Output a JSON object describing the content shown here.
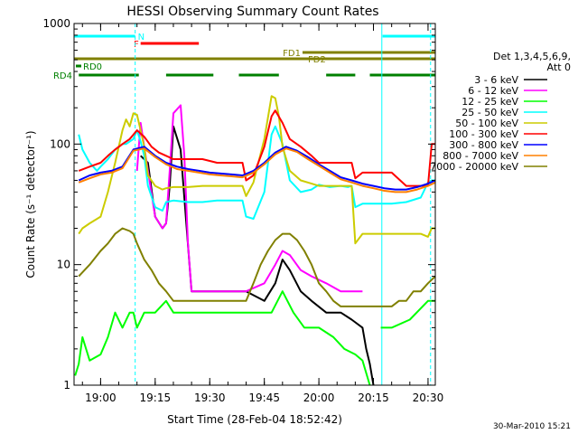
{
  "chart_data": {
    "type": "line",
    "title": "HESSI Observing Summary Count Rates",
    "xlabel": "Start Time (28-Feb-04 18:52:42)",
    "ylabel": "Count Rate (s⁻¹ detector⁻¹)",
    "y_scale": "log",
    "ylim": [
      1,
      1000
    ],
    "xlim_minutes": [
      -7.3,
      92
    ],
    "x_ticks": [
      {
        "label": "19:00",
        "min": 0
      },
      {
        "label": "19:15",
        "min": 15
      },
      {
        "label": "19:30",
        "min": 30
      },
      {
        "label": "19:45",
        "min": 45
      },
      {
        "label": "20:00",
        "min": 60
      },
      {
        "label": "20:15",
        "min": 75
      },
      {
        "label": "20:30",
        "min": 90
      }
    ],
    "y_ticks": [
      {
        "label": "1",
        "value": 1
      },
      {
        "label": "10",
        "value": 10
      },
      {
        "label": "100",
        "value": 100
      },
      {
        "label": "1000",
        "value": 1000
      }
    ],
    "legend_header": [
      "Det 1,3,4,5,6,9,",
      "Att 0"
    ],
    "footer_date": "30-Mar-2010 15:21",
    "series": [
      {
        "name": "3 - 6 keV",
        "color": "#000000",
        "x": [
          -7,
          -2,
          3,
          6,
          8,
          10,
          11,
          13,
          15,
          17,
          18,
          19,
          20,
          22,
          25,
          30,
          35,
          40,
          45,
          48,
          50,
          52,
          55,
          58,
          62,
          66,
          69,
          72,
          73,
          74,
          75,
          77,
          80,
          85,
          90,
          92
        ],
        "y": [
          null,
          null,
          null,
          null,
          null,
          null,
          80,
          70,
          25,
          20,
          22,
          45,
          140,
          90,
          6,
          6,
          6,
          6,
          5,
          7,
          11,
          9,
          6,
          5,
          4,
          4,
          3.5,
          3,
          2,
          1.5,
          1,
          null,
          null,
          null,
          null,
          null
        ]
      },
      {
        "name": "6 - 12 keV",
        "color": "#ff00ff",
        "x": [
          -7,
          -2,
          3,
          6,
          8,
          9,
          10,
          11,
          13,
          15,
          17,
          18,
          19,
          20,
          22,
          23,
          24,
          25,
          28,
          32,
          36,
          40,
          45,
          48,
          50,
          52,
          55,
          58,
          62,
          66,
          69,
          72,
          75,
          77,
          80,
          85,
          90,
          92
        ],
        "y": [
          null,
          null,
          null,
          null,
          null,
          null,
          60,
          150,
          60,
          25,
          20,
          22,
          60,
          180,
          210,
          80,
          15,
          6,
          6,
          6,
          6,
          6,
          7,
          10,
          13,
          12,
          9,
          8,
          7,
          6,
          6,
          6,
          null,
          null,
          null,
          null,
          null,
          null
        ]
      },
      {
        "name": "12 - 25 keV",
        "color": "#00ff00",
        "x": [
          -7,
          -6,
          -5,
          -3,
          0,
          2,
          4,
          6,
          8,
          9,
          10,
          12,
          15,
          18,
          20,
          24,
          28,
          32,
          36,
          40,
          44,
          47,
          50,
          53,
          56,
          60,
          64,
          67,
          70,
          72,
          74,
          75,
          77,
          80,
          85,
          90,
          92
        ],
        "y": [
          1.2,
          1.5,
          2.5,
          1.6,
          1.8,
          2.5,
          4,
          3,
          4,
          4,
          3,
          4,
          4,
          5,
          4,
          4,
          4,
          4,
          4,
          4,
          4,
          4,
          6,
          4,
          3,
          3,
          2.5,
          2,
          1.8,
          1.6,
          1,
          null,
          3,
          3,
          3.5,
          5,
          5
        ]
      },
      {
        "name": "25 - 50 keV",
        "color": "#00ffff",
        "x": [
          -7,
          -6,
          -5,
          -3,
          -1,
          0,
          2,
          4,
          6,
          7,
          8,
          9,
          10,
          11,
          12,
          13,
          15,
          17,
          18,
          20,
          24,
          28,
          32,
          36,
          39,
          40,
          42,
          45,
          47,
          48,
          50,
          52,
          55,
          58,
          60,
          63,
          66,
          68,
          69,
          70,
          72,
          75,
          77,
          80,
          84,
          88,
          90,
          91,
          92
        ],
        "y": [
          null,
          120,
          90,
          70,
          60,
          65,
          75,
          90,
          100,
          100,
          105,
          110,
          130,
          105,
          80,
          45,
          30,
          28,
          33,
          34,
          33,
          33,
          34,
          34,
          34,
          25,
          24,
          40,
          120,
          140,
          100,
          50,
          40,
          42,
          46,
          44,
          45,
          44,
          45,
          30,
          32,
          32,
          32,
          32,
          33,
          36,
          48,
          50,
          50
        ]
      },
      {
        "name": "50 - 100 keV",
        "color": "#cccc00",
        "x": [
          -7,
          -6,
          -5,
          -3,
          0,
          2,
          4,
          6,
          7,
          8,
          9,
          10,
          11,
          12,
          13,
          15,
          17,
          18,
          20,
          24,
          28,
          32,
          36,
          39,
          40,
          42,
          45,
          47,
          48,
          49,
          50,
          52,
          55,
          58,
          60,
          63,
          66,
          68,
          69,
          70,
          72,
          75,
          77,
          80,
          84,
          88,
          90,
          91,
          92
        ],
        "y": [
          null,
          18,
          20,
          22,
          25,
          40,
          70,
          130,
          160,
          140,
          180,
          175,
          130,
          95,
          55,
          45,
          42,
          43,
          44,
          44,
          45,
          45,
          45,
          45,
          37,
          48,
          110,
          250,
          240,
          170,
          95,
          60,
          50,
          47,
          45,
          45,
          45,
          45,
          45,
          15,
          18,
          18,
          18,
          18,
          18,
          18,
          17,
          20,
          20
        ]
      },
      {
        "name": "100 - 300 keV",
        "color": "#ff0000",
        "x": [
          -7,
          -6,
          -3,
          0,
          2,
          4,
          6,
          8,
          10,
          12,
          14,
          16,
          18,
          20,
          24,
          28,
          32,
          36,
          39,
          40,
          42,
          45,
          47,
          48,
          50,
          52,
          55,
          58,
          60,
          63,
          66,
          68,
          69,
          70,
          72,
          75,
          77,
          80,
          84,
          88,
          90,
          91,
          92
        ],
        "y": [
          null,
          60,
          65,
          70,
          80,
          90,
          100,
          110,
          130,
          115,
          95,
          85,
          80,
          75,
          75,
          75,
          70,
          70,
          70,
          50,
          55,
          95,
          170,
          190,
          150,
          110,
          95,
          80,
          70,
          70,
          70,
          70,
          70,
          52,
          58,
          58,
          58,
          58,
          45,
          45,
          45,
          100,
          100
        ]
      },
      {
        "name": "300 - 800 keV",
        "color": "#0000ff",
        "x": [
          -7,
          -6,
          -3,
          0,
          3,
          6,
          9,
          12,
          15,
          18,
          21,
          24,
          27,
          30,
          33,
          36,
          39,
          42,
          45,
          48,
          51,
          54,
          57,
          60,
          63,
          66,
          69,
          72,
          75,
          78,
          81,
          84,
          87,
          90,
          92
        ],
        "y": [
          null,
          50,
          55,
          58,
          60,
          65,
          90,
          95,
          80,
          70,
          65,
          62,
          60,
          58,
          57,
          56,
          55,
          60,
          70,
          85,
          95,
          88,
          78,
          68,
          60,
          53,
          50,
          47,
          45,
          43,
          42,
          42,
          44,
          47,
          50
        ]
      },
      {
        "name": "800 - 7000 keV",
        "color": "#ff8000",
        "x": [
          -7,
          -6,
          -3,
          0,
          3,
          6,
          9,
          12,
          15,
          18,
          21,
          24,
          27,
          30,
          33,
          36,
          39,
          42,
          45,
          48,
          51,
          54,
          57,
          60,
          63,
          66,
          69,
          72,
          75,
          78,
          81,
          84,
          87,
          90,
          92
        ],
        "y": [
          null,
          48,
          52,
          56,
          58,
          63,
          88,
          92,
          78,
          68,
          62,
          60,
          58,
          56,
          55,
          54,
          53,
          58,
          68,
          82,
          92,
          86,
          75,
          66,
          58,
          51,
          48,
          45,
          43,
          41,
          40,
          40,
          42,
          45,
          48
        ]
      },
      {
        "name": "7000 - 20000 keV",
        "color": "#808000",
        "x": [
          -7,
          -6,
          -3,
          0,
          2,
          4,
          6,
          8,
          9,
          10,
          12,
          14,
          16,
          18,
          20,
          24,
          28,
          32,
          36,
          40,
          42,
          44,
          46,
          48,
          50,
          52,
          54,
          56,
          58,
          60,
          62,
          64,
          66,
          68,
          70,
          72,
          74,
          76,
          78,
          80,
          82,
          84,
          86,
          88,
          90,
          92
        ],
        "y": [
          null,
          8,
          10,
          13,
          15,
          18,
          20,
          19,
          18,
          15,
          11,
          9,
          7,
          6,
          5,
          5,
          5,
          5,
          5,
          5,
          7,
          10,
          13,
          16,
          18,
          18,
          16,
          13,
          10,
          7,
          6,
          5,
          4.5,
          4.5,
          4.5,
          4.5,
          4.5,
          4.5,
          4.5,
          4.5,
          5,
          5,
          6,
          6,
          7,
          8
        ]
      }
    ],
    "flags": [
      {
        "label": "N",
        "color": "#00ffff",
        "row": 0,
        "intervals": [
          [
            -7.3,
            9.5
          ],
          [
            77.5,
            92
          ]
        ]
      },
      {
        "label": "F",
        "color": "#ff0000",
        "row": 1,
        "intervals": [
          [
            11,
            27
          ]
        ]
      },
      {
        "label": "FD1",
        "color": "#808000",
        "row": 2,
        "intervals": [
          [
            55.5,
            92
          ]
        ]
      },
      {
        "label": "FD2",
        "color": "#808000",
        "row": 3,
        "intervals": [
          [
            -7.3,
            92
          ]
        ]
      },
      {
        "label": "RD0",
        "color": "#008000",
        "row": 4,
        "intervals": []
      },
      {
        "label": "RD4",
        "color": "#008000",
        "row": 5,
        "intervals": [
          [
            -6,
            10.5
          ],
          [
            18,
            31
          ],
          [
            38,
            49
          ],
          [
            62,
            70
          ],
          [
            74,
            92
          ]
        ]
      }
    ],
    "vlines": [
      {
        "min": -7.3,
        "color": "#00ffff",
        "style": "solid"
      },
      {
        "min": 9.5,
        "color": "#00ffff",
        "style": "dashed"
      },
      {
        "min": 77.3,
        "color": "#00ffff",
        "style": "solid"
      },
      {
        "min": 90.7,
        "color": "#00ffff",
        "style": "dashed"
      }
    ]
  }
}
